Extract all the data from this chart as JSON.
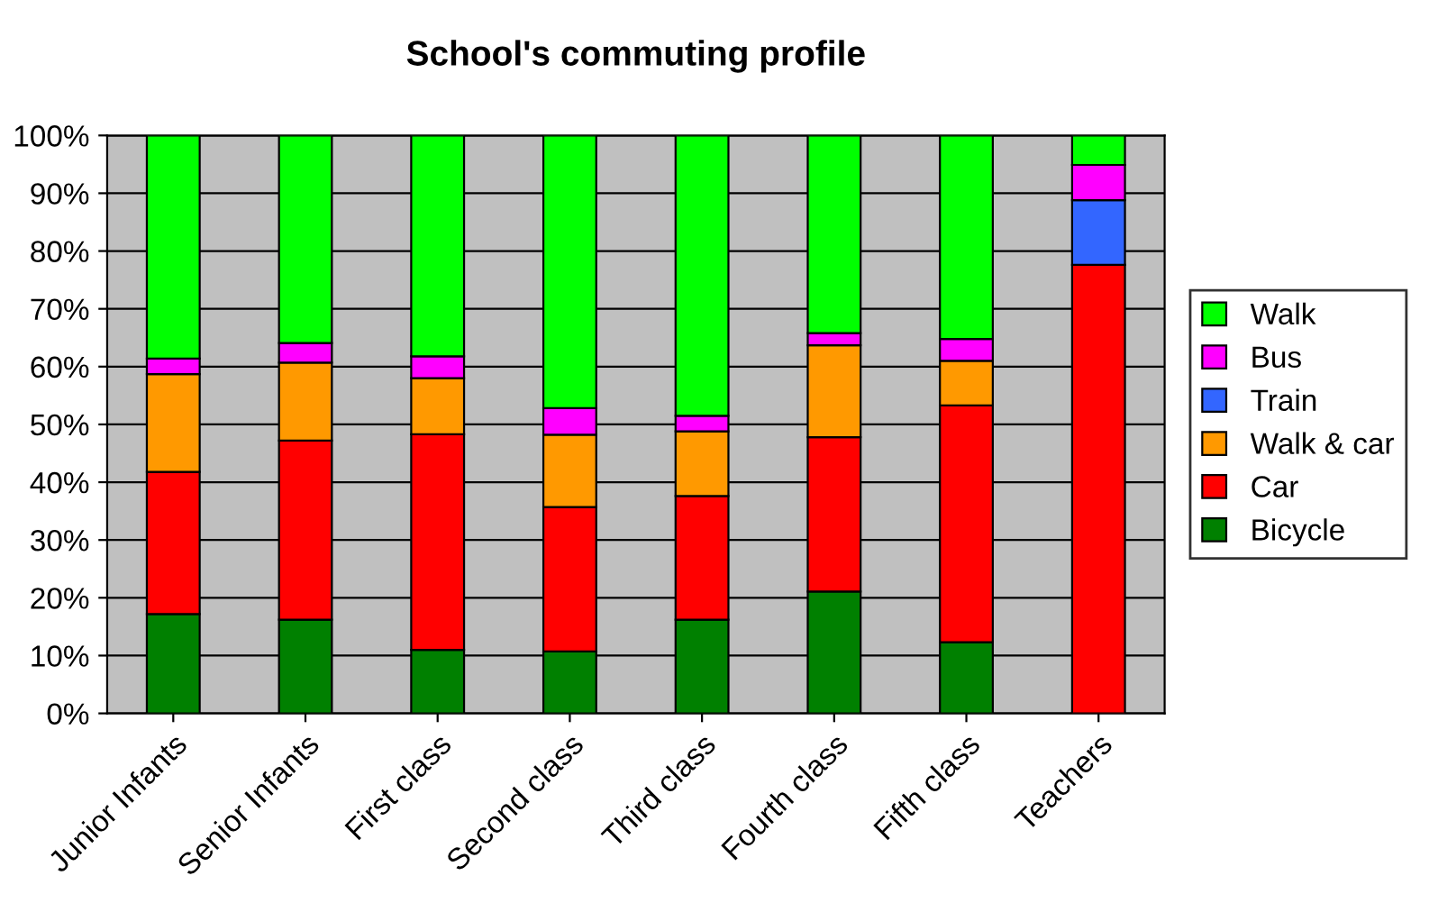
{
  "chart_data": {
    "type": "bar",
    "stacked": true,
    "title": "School's commuting profile",
    "categories": [
      "Junior Infants",
      "Senior Infants",
      "First class",
      "Second class",
      "Third class",
      "Fourth class",
      "Fifth class",
      "Teachers"
    ],
    "series": [
      {
        "name": "Bicycle",
        "color": "#008000",
        "values": [
          17.2,
          16.2,
          11.0,
          10.7,
          16.2,
          21.1,
          12.3,
          null
        ]
      },
      {
        "name": "Car",
        "color": "#ff0000",
        "values": [
          24.6,
          31.0,
          37.3,
          25.0,
          21.4,
          26.7,
          41.0,
          77.6
        ]
      },
      {
        "name": "Walk & car",
        "color": "#ff9900",
        "values": [
          16.9,
          13.5,
          9.7,
          12.5,
          11.2,
          15.9,
          7.7,
          null
        ]
      },
      {
        "name": "Train",
        "color": "#3366ff",
        "values": [
          null,
          null,
          null,
          null,
          null,
          null,
          null,
          11.2
        ]
      },
      {
        "name": "Bus",
        "color": "#ff00ff",
        "values": [
          2.7,
          3.4,
          3.8,
          4.6,
          2.7,
          2.1,
          3.8,
          6.1
        ]
      },
      {
        "name": "Walk",
        "color": "#00ff00",
        "values": [
          38.6,
          35.9,
          38.2,
          47.2,
          48.5,
          34.2,
          35.2,
          5.1
        ]
      }
    ],
    "ylim": [
      0,
      100
    ],
    "yticks": [
      {
        "value": 0,
        "label": "0%"
      },
      {
        "value": 10,
        "label": "10%"
      },
      {
        "value": 20,
        "label": "20%"
      },
      {
        "value": 30,
        "label": "30%"
      },
      {
        "value": 40,
        "label": "40%"
      },
      {
        "value": 50,
        "label": "50%"
      },
      {
        "value": 60,
        "label": "60%"
      },
      {
        "value": 70,
        "label": "70%"
      },
      {
        "value": 80,
        "label": "80%"
      },
      {
        "value": 90,
        "label": "90%"
      },
      {
        "value": 100,
        "label": "100%"
      }
    ],
    "grid": "y",
    "legend": "right"
  }
}
